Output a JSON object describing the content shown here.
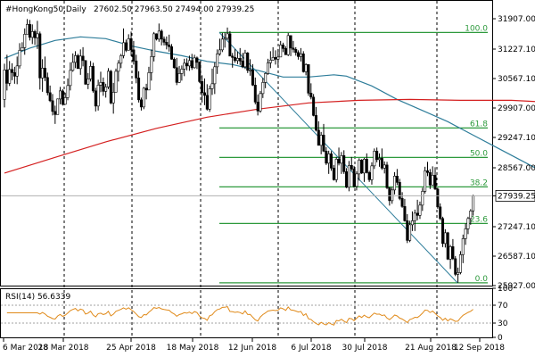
{
  "header": {
    "symbol": "#HongKong50,Daily",
    "ohlc": "27602.50 27963.50 27494.00 27939.25"
  },
  "rsi": {
    "label": "RSI(14) 56.6339"
  },
  "chart_data": {
    "type": "candlestick",
    "symbol": "#HongKong50",
    "timeframe": "Daily",
    "last_price": "27939.25",
    "ohlc_last": {
      "open": 27602.5,
      "high": 27963.5,
      "low": 27494.0,
      "close": 27939.25
    },
    "y_ticks": [
      "31907.00",
      "31227.10",
      "30567.10",
      "29907.00",
      "29247.10",
      "28567.00",
      "27939.25",
      "27247.10",
      "26587.10",
      "25927.00"
    ],
    "y_tick_values": [
      31907,
      31227.1,
      30567.1,
      29907,
      29247.1,
      28567,
      27939.25,
      27247.1,
      26587.1,
      25927
    ],
    "x_ticks": [
      "6 Mar 2018",
      "28 Mar 2018",
      "25 Apr 2018",
      "18 May 2018",
      "12 Jun 2018",
      "6 Jul 2018",
      "30 Jul 2018",
      "21 Aug 2018",
      "12 Sep 2018"
    ],
    "fibonacci": {
      "high": 31600,
      "low": 25990,
      "levels": [
        {
          "label": "100.0",
          "value": 31600
        },
        {
          "label": "61.8",
          "value": 29460
        },
        {
          "label": "50.0",
          "value": 28800
        },
        {
          "label": "38.2",
          "value": 28140
        },
        {
          "label": "23.6",
          "value": 27320
        },
        {
          "label": "0.0",
          "value": 25990
        }
      ]
    },
    "moving_averages": [
      {
        "color": "#2e7d9a",
        "points": [
          [
            0,
            31020
          ],
          [
            10,
            31250
          ],
          [
            20,
            31420
          ],
          [
            30,
            31500
          ],
          [
            40,
            31460
          ],
          [
            50,
            31300
          ],
          [
            60,
            31180
          ],
          [
            70,
            31080
          ],
          [
            80,
            30950
          ],
          [
            90,
            30880
          ],
          [
            100,
            30750
          ],
          [
            110,
            30600
          ],
          [
            120,
            30600
          ],
          [
            130,
            30650
          ],
          [
            135,
            30620
          ],
          [
            145,
            30400
          ],
          [
            155,
            30100
          ],
          [
            165,
            29850
          ],
          [
            175,
            29600
          ],
          [
            185,
            29300
          ],
          [
            195,
            29000
          ],
          [
            205,
            28700
          ],
          [
            215,
            28400
          ],
          [
            225,
            28300
          ],
          [
            230,
            28100
          ],
          [
            240,
            27800
          ],
          [
            248,
            27600
          ]
        ]
      },
      {
        "color": "#d42020",
        "points": [
          [
            0,
            28450
          ],
          [
            20,
            28800
          ],
          [
            40,
            29150
          ],
          [
            60,
            29450
          ],
          [
            80,
            29700
          ],
          [
            100,
            29880
          ],
          [
            120,
            30020
          ],
          [
            140,
            30080
          ],
          [
            160,
            30100
          ],
          [
            180,
            30080
          ],
          [
            200,
            30080
          ],
          [
            220,
            30020
          ],
          [
            235,
            29930
          ],
          [
            248,
            29800
          ]
        ]
      }
    ],
    "candles": [
      [
        30100,
        30900,
        29920,
        30760
      ],
      [
        30760,
        31100,
        30300,
        30460
      ],
      [
        30460,
        30960,
        30400,
        30770
      ],
      [
        30770,
        30910,
        30530,
        30700
      ],
      [
        30700,
        30830,
        30450,
        30620
      ],
      [
        30620,
        31060,
        30440,
        30850
      ],
      [
        30850,
        31360,
        30790,
        31200
      ],
      [
        31200,
        31380,
        31210,
        31260
      ],
      [
        31260,
        31690,
        31100,
        31560
      ],
      [
        31560,
        31900,
        31570,
        31780
      ],
      [
        31780,
        31880,
        31420,
        31490
      ],
      [
        31490,
        31780,
        31340,
        31620
      ],
      [
        31620,
        31660,
        31320,
        31480
      ],
      [
        31480,
        31860,
        31230,
        31570
      ],
      [
        31570,
        31620,
        30320,
        30580
      ],
      [
        30580,
        31000,
        30270,
        30800
      ],
      [
        30800,
        31060,
        30510,
        30590
      ],
      [
        30590,
        30700,
        30190,
        30250
      ],
      [
        30250,
        30410,
        30040,
        30070
      ],
      [
        30070,
        30220,
        29740,
        29830
      ],
      [
        29830,
        29960,
        29550,
        29760
      ],
      [
        29760,
        30120,
        29770,
        30110
      ],
      [
        30110,
        30380,
        29990,
        30290
      ],
      [
        30290,
        30330,
        29960,
        29990
      ],
      [
        29990,
        30250,
        29980,
        30140
      ],
      [
        30140,
        30570,
        30080,
        30410
      ],
      [
        30410,
        30930,
        30300,
        30750
      ],
      [
        30750,
        31130,
        30720,
        30930
      ],
      [
        30930,
        31180,
        30800,
        31080
      ],
      [
        31080,
        31120,
        30790,
        30790
      ],
      [
        30790,
        31220,
        30650,
        31070
      ],
      [
        31070,
        31270,
        30840,
        30970
      ],
      [
        30970,
        30980,
        30430,
        30440
      ],
      [
        30440,
        30690,
        30330,
        30560
      ],
      [
        30560,
        30960,
        30500,
        30840
      ],
      [
        30840,
        30920,
        30250,
        30290
      ],
      [
        30290,
        30360,
        29830,
        29950
      ],
      [
        29950,
        30540,
        29850,
        30420
      ],
      [
        30420,
        30720,
        30260,
        30480
      ],
      [
        30480,
        30590,
        30180,
        30280
      ],
      [
        30280,
        30450,
        30140,
        30380
      ],
      [
        30380,
        30800,
        30330,
        30730
      ],
      [
        30730,
        30760,
        29990,
        30020
      ],
      [
        30020,
        30470,
        29780,
        30260
      ],
      [
        30260,
        30790,
        30260,
        30730
      ],
      [
        30730,
        30980,
        30500,
        30910
      ],
      [
        30910,
        31120,
        30800,
        31080
      ],
      [
        31080,
        31690,
        31020,
        31370
      ],
      [
        31370,
        31440,
        31160,
        31200
      ],
      [
        31200,
        31560,
        31200,
        31460
      ],
      [
        31460,
        31620,
        31070,
        31210
      ],
      [
        31210,
        31410,
        30880,
        30960
      ],
      [
        30960,
        31100,
        30460,
        30580
      ],
      [
        30580,
        30730,
        30030,
        30090
      ],
      [
        30090,
        30140,
        29850,
        29930
      ],
      [
        29930,
        30380,
        29880,
        30350
      ],
      [
        30350,
        30450,
        30100,
        30310
      ],
      [
        30310,
        30830,
        30310,
        30700
      ],
      [
        30700,
        31220,
        30520,
        31060
      ],
      [
        31060,
        31610,
        30950,
        31570
      ],
      [
        31570,
        31580,
        31420,
        31450
      ],
      [
        31450,
        31800,
        31390,
        31630
      ],
      [
        31630,
        31670,
        31310,
        31450
      ],
      [
        31450,
        31510,
        31310,
        31380
      ],
      [
        31380,
        31510,
        31220,
        31320
      ],
      [
        31320,
        31550,
        31170,
        31280
      ],
      [
        31280,
        31340,
        30990,
        31000
      ],
      [
        31000,
        31040,
        30790,
        30810
      ],
      [
        30810,
        31030,
        30420,
        30480
      ],
      [
        30480,
        30850,
        30470,
        30680
      ],
      [
        30680,
        30860,
        30520,
        30780
      ],
      [
        30780,
        31010,
        30620,
        30910
      ],
      [
        30910,
        31020,
        30750,
        30850
      ],
      [
        30850,
        31080,
        30740,
        30970
      ],
      [
        30970,
        31120,
        30760,
        30810
      ],
      [
        30810,
        31100,
        30790,
        31030
      ],
      [
        31030,
        31060,
        30780,
        30930
      ],
      [
        30930,
        30950,
        30470,
        30500
      ],
      [
        30500,
        30640,
        30030,
        30250
      ],
      [
        30250,
        30570,
        29970,
        30190
      ],
      [
        30190,
        30440,
        29850,
        29880
      ],
      [
        29880,
        30410,
        29820,
        30340
      ],
      [
        30340,
        30790,
        30200,
        30450
      ],
      [
        30450,
        30930,
        30220,
        30830
      ],
      [
        30830,
        31220,
        30670,
        31120
      ],
      [
        31120,
        31460,
        31080,
        31210
      ],
      [
        31210,
        31590,
        31160,
        31450
      ],
      [
        31450,
        31600,
        31260,
        31470
      ],
      [
        31470,
        31710,
        31430,
        31570
      ],
      [
        31570,
        31630,
        31070,
        31070
      ],
      [
        31070,
        31140,
        30810,
        31040
      ],
      [
        31040,
        31230,
        30920,
        30970
      ],
      [
        30970,
        31170,
        30890,
        31020
      ],
      [
        31020,
        31250,
        30870,
        30960
      ],
      [
        30960,
        31140,
        30800,
        30830
      ],
      [
        30830,
        31210,
        30780,
        31140
      ],
      [
        31140,
        31160,
        30690,
        30750
      ],
      [
        30750,
        31000,
        30630,
        30760
      ],
      [
        30760,
        30890,
        30400,
        30420
      ],
      [
        30420,
        30590,
        29990,
        30040
      ],
      [
        30040,
        30210,
        29740,
        29840
      ],
      [
        29840,
        30290,
        29800,
        30230
      ],
      [
        30230,
        30580,
        30130,
        30480
      ],
      [
        30480,
        30700,
        30350,
        30680
      ],
      [
        30680,
        31010,
        30650,
        30920
      ],
      [
        30920,
        31180,
        30800,
        30980
      ],
      [
        30980,
        31270,
        30970,
        31040
      ],
      [
        31040,
        31200,
        30880,
        31000
      ],
      [
        31000,
        31230,
        30820,
        31050
      ],
      [
        31050,
        31410,
        31050,
        31320
      ],
      [
        31320,
        31370,
        31160,
        31240
      ],
      [
        31240,
        31290,
        31100,
        31100
      ],
      [
        31100,
        31590,
        31070,
        31530
      ],
      [
        31530,
        31510,
        31070,
        31250
      ],
      [
        31250,
        31410,
        31150,
        31220
      ],
      [
        31220,
        31270,
        31080,
        31150
      ],
      [
        31150,
        31200,
        30990,
        31060
      ],
      [
        31060,
        31250,
        30950,
        31120
      ],
      [
        31120,
        31180,
        30700,
        30720
      ],
      [
        30720,
        30910,
        30640,
        30880
      ],
      [
        30880,
        30870,
        30180,
        30240
      ],
      [
        30240,
        30460,
        30100,
        30150
      ],
      [
        30150,
        30220,
        29720,
        29740
      ],
      [
        29740,
        29930,
        29380,
        29410
      ],
      [
        29410,
        29610,
        29070,
        29070
      ],
      [
        29070,
        29370,
        28870,
        29300
      ],
      [
        29300,
        29550,
        28920,
        28940
      ],
      [
        28940,
        29030,
        28630,
        28670
      ],
      [
        28670,
        28950,
        28430,
        28880
      ],
      [
        28880,
        28940,
        28500,
        28560
      ],
      [
        28560,
        28630,
        28280,
        28300
      ],
      [
        28300,
        28810,
        28240,
        28760
      ],
      [
        28760,
        29020,
        28620,
        28670
      ],
      [
        28670,
        28920,
        28430,
        28840
      ],
      [
        28840,
        28960,
        28430,
        28480
      ],
      [
        28480,
        28560,
        28110,
        28130
      ],
      [
        28130,
        28720,
        28040,
        28620
      ],
      [
        28620,
        28810,
        28500,
        28540
      ],
      [
        28540,
        28610,
        28120,
        28150
      ],
      [
        28150,
        28490,
        28060,
        28430
      ],
      [
        28430,
        28780,
        28280,
        28740
      ],
      [
        28740,
        28760,
        28430,
        28450
      ],
      [
        28450,
        28790,
        28250,
        28760
      ],
      [
        28760,
        28890,
        28440,
        28460
      ],
      [
        28460,
        28500,
        28250,
        28300
      ],
      [
        28300,
        28690,
        28190,
        28610
      ],
      [
        28610,
        29000,
        28540,
        28940
      ],
      [
        28940,
        29020,
        28690,
        28750
      ],
      [
        28750,
        28890,
        28590,
        28780
      ],
      [
        28780,
        29000,
        28520,
        28560
      ],
      [
        28560,
        28710,
        28440,
        28630
      ],
      [
        28630,
        28700,
        28090,
        28120
      ],
      [
        28120,
        28130,
        27720,
        27830
      ],
      [
        27830,
        28130,
        27760,
        28070
      ],
      [
        28070,
        28470,
        27970,
        28380
      ],
      [
        28380,
        28540,
        28180,
        28240
      ],
      [
        28240,
        28320,
        27840,
        27880
      ],
      [
        27880,
        28020,
        27670,
        27700
      ],
      [
        27700,
        27870,
        27360,
        27380
      ],
      [
        27380,
        27530,
        26880,
        26940
      ],
      [
        26940,
        27380,
        26900,
        27290
      ],
      [
        27290,
        27590,
        27150,
        27380
      ],
      [
        27380,
        27630,
        27150,
        27550
      ],
      [
        27550,
        27850,
        27390,
        27500
      ],
      [
        27500,
        27810,
        27420,
        27730
      ],
      [
        27730,
        28120,
        27600,
        28040
      ],
      [
        28040,
        28590,
        27990,
        28500
      ],
      [
        28500,
        28700,
        28380,
        28460
      ],
      [
        28460,
        28540,
        28090,
        28180
      ],
      [
        28180,
        28600,
        28170,
        28400
      ],
      [
        28400,
        28580,
        28070,
        28090
      ],
      [
        28090,
        28120,
        27650,
        27690
      ],
      [
        27690,
        27770,
        27390,
        27430
      ],
      [
        27430,
        27470,
        26790,
        26870
      ],
      [
        26870,
        27190,
        26780,
        27110
      ],
      [
        27110,
        27130,
        26500,
        26520
      ],
      [
        26520,
        26840,
        26300,
        26800
      ],
      [
        26800,
        26970,
        26500,
        26530
      ],
      [
        26530,
        26590,
        26140,
        26180
      ],
      [
        26180,
        26330,
        25990,
        26220
      ],
      [
        26220,
        26700,
        26180,
        26620
      ],
      [
        26620,
        27070,
        26430,
        26980
      ],
      [
        26980,
        27320,
        26840,
        27200
      ],
      [
        27200,
        27470,
        27080,
        27430
      ],
      [
        27430,
        27640,
        27290,
        27600
      ],
      [
        27602.5,
        27963.5,
        27494,
        27939.25
      ]
    ]
  }
}
